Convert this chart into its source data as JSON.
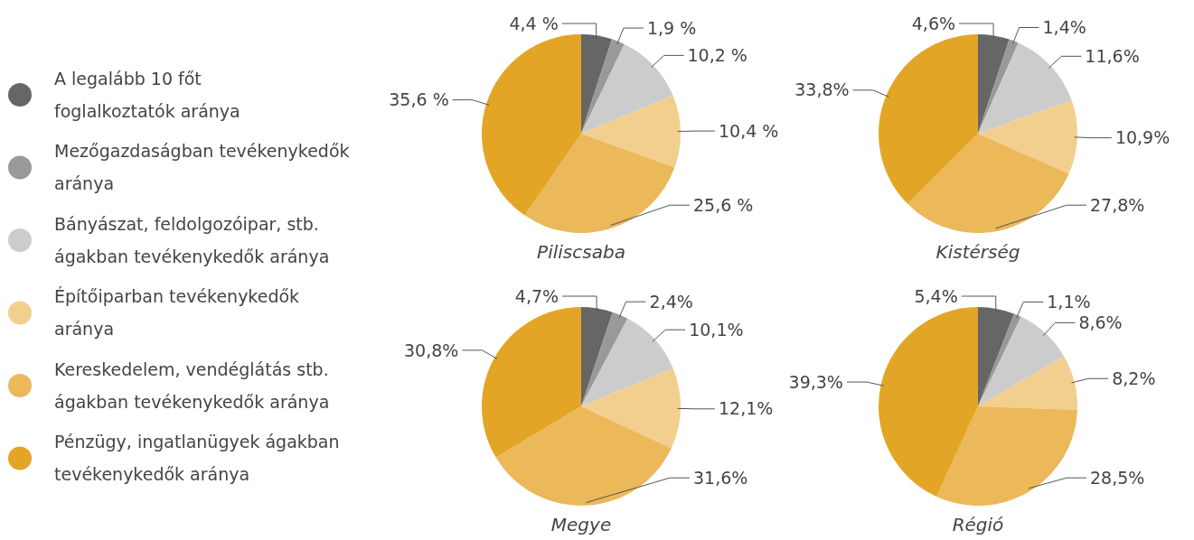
{
  "chart_data": [
    {
      "type": "pie",
      "title": "Piliscsaba",
      "legend": "left",
      "categories": [
        "A legalább 10 főt foglalkoztatók aránya",
        "Mezőgazdaságban tevékenykedők aránya",
        "Bányászat, feldolgozóipar, stb. ágakban tevékenykedők aránya",
        "Építőiparban tevékenykedők aránya",
        "Kereskedelem, vendéglátás stb. ágakban tevékenykedők aránya",
        "Pénzügy, ingatlanügyek ágakban tevékenykedők aránya"
      ],
      "colors": [
        "#666666",
        "#999999",
        "#cccccc",
        "#f2cf8f",
        "#ebb85a",
        "#e3a526"
      ],
      "values": [
        4.4,
        1.9,
        10.2,
        10.4,
        25.6,
        35.6
      ],
      "value_labels": [
        "4,4 %",
        "1,9 %",
        "10,2 %",
        "10,4 %",
        "25,6 %",
        "35,6 %"
      ]
    },
    {
      "type": "pie",
      "title": "Kistérség",
      "categories": [
        null,
        null,
        null,
        null,
        null,
        null
      ],
      "colors": [
        "#666666",
        "#999999",
        "#cccccc",
        "#f2cf8f",
        "#ebb85a",
        "#e3a526"
      ],
      "values": [
        4.6,
        1.4,
        11.6,
        10.9,
        27.8,
        33.8
      ],
      "value_labels": [
        "4,6%",
        "1,4%",
        "11,6%",
        "10,9%",
        "27,8%",
        "33,8%"
      ]
    },
    {
      "type": "pie",
      "title": "Megye",
      "categories": [
        null,
        null,
        null,
        null,
        null,
        null
      ],
      "colors": [
        "#666666",
        "#999999",
        "#cccccc",
        "#f2cf8f",
        "#ebb85a",
        "#e3a526"
      ],
      "values": [
        4.7,
        2.4,
        10.1,
        12.1,
        31.6,
        30.8
      ],
      "value_labels": [
        "4,7%",
        "2,4%",
        "10,1%",
        "12,1%",
        "31,6%",
        "30,8%"
      ]
    },
    {
      "type": "pie",
      "title": "Régió",
      "categories": [
        null,
        null,
        null,
        null,
        null,
        null
      ],
      "colors": [
        "#666666",
        "#999999",
        "#cccccc",
        "#f2cf8f",
        "#ebb85a",
        "#e3a526"
      ],
      "values": [
        5.4,
        1.1,
        8.6,
        8.2,
        28.5,
        39.3
      ],
      "value_labels": [
        "5,4%",
        "1,1%",
        "8,6%",
        "8,2%",
        "28,5%",
        "39,3%"
      ]
    }
  ]
}
